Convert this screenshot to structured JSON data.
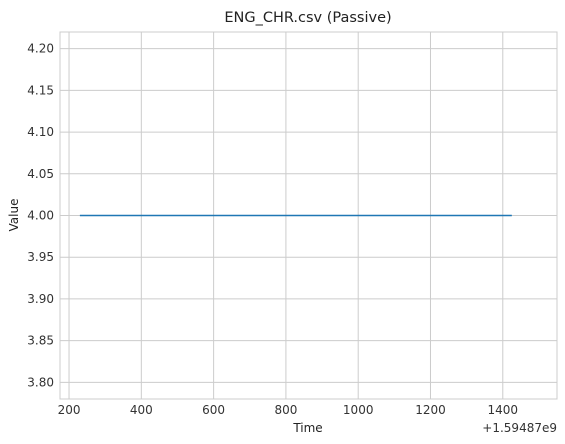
{
  "chart_data": {
    "type": "line",
    "title": "ENG_CHR.csv (Passive)",
    "xlabel": "Time",
    "ylabel": "Value",
    "x_offset_label": "+1.59487e9",
    "xlim": [
      175,
      1550
    ],
    "ylim": [
      3.78,
      4.22
    ],
    "x_ticks": [
      200,
      400,
      600,
      800,
      1000,
      1200,
      1400
    ],
    "x_tick_labels": [
      "200",
      "400",
      "600",
      "800",
      "1000",
      "1200",
      "1400"
    ],
    "y_ticks": [
      3.8,
      3.85,
      3.9,
      3.95,
      4.0,
      4.05,
      4.1,
      4.15,
      4.2
    ],
    "y_tick_labels": [
      "3.80",
      "3.85",
      "3.90",
      "3.95",
      "4.00",
      "4.05",
      "4.10",
      "4.15",
      "4.20"
    ],
    "grid": true,
    "series": [
      {
        "color": "#1f77b4",
        "x": [
          230,
          1425
        ],
        "y": [
          4.0,
          4.0
        ]
      }
    ]
  }
}
